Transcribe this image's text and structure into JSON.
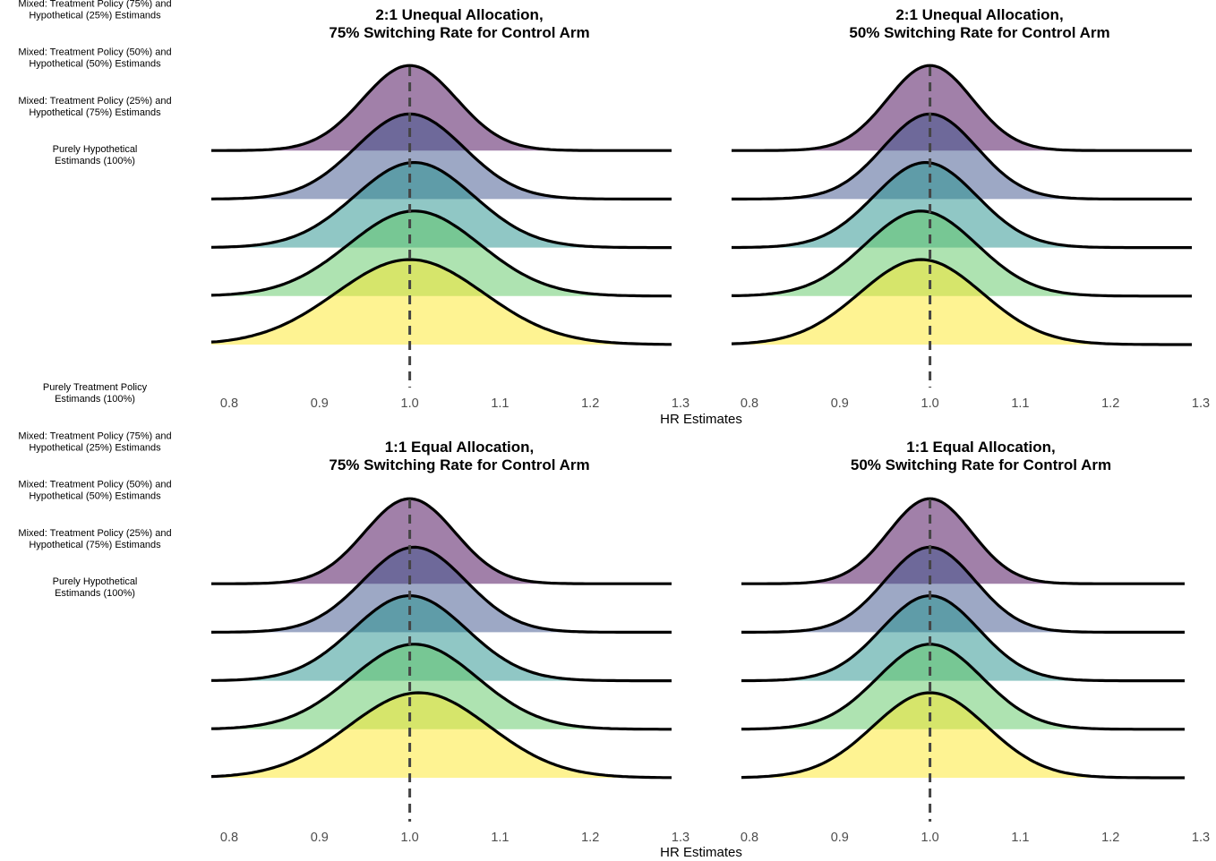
{
  "chart_data": {
    "type": "ridgeline",
    "xlabel": "HR Estimates",
    "xlim": [
      0.78,
      1.29
    ],
    "x_ticks": [
      "0.8",
      "0.9",
      "1.0",
      "1.1",
      "1.2",
      "1.3"
    ],
    "x_tick_values": [
      0.8,
      0.9,
      1.0,
      1.1,
      1.2,
      1.3
    ],
    "reference_line": 1.0,
    "categories": [
      [
        "Purely Treatment Policy",
        "Estimands (100%)"
      ],
      [
        "Mixed: Treatment Policy (75%) and",
        "Hypothetical (25%) Estimands"
      ],
      [
        "Mixed: Treatment Policy (50%) and",
        "Hypothetical (50%) Estimands"
      ],
      [
        "Mixed: Treatment Policy (25%) and",
        "Hypothetical (75%) Estimands"
      ],
      [
        "Purely Hypothetical",
        "Estimands (100%)"
      ]
    ],
    "colors": [
      "#440154",
      "#3b528b",
      "#21908c",
      "#5dc863",
      "#fde725"
    ],
    "panels": [
      {
        "title": [
          "2:1 Unequal Allocation,",
          "75% Switching Rate for Control Arm"
        ],
        "series": [
          {
            "center": 1.0,
            "sd": 0.052
          },
          {
            "center": 1.0,
            "sd": 0.06
          },
          {
            "center": 1.005,
            "sd": 0.066
          },
          {
            "center": 1.005,
            "sd": 0.073
          },
          {
            "center": 1.0,
            "sd": 0.082
          }
        ]
      },
      {
        "title": [
          "2:1 Unequal Allocation,",
          "50% Switching Rate for Control Arm"
        ],
        "series": [
          {
            "center": 1.0,
            "sd": 0.047
          },
          {
            "center": 1.0,
            "sd": 0.052
          },
          {
            "center": 0.995,
            "sd": 0.057
          },
          {
            "center": 0.99,
            "sd": 0.062
          },
          {
            "center": 0.99,
            "sd": 0.068
          }
        ]
      },
      {
        "title": [
          "1:1 Equal Allocation,",
          "75% Switching Rate for Control Arm"
        ],
        "series": [
          {
            "center": 1.0,
            "sd": 0.05
          },
          {
            "center": 1.005,
            "sd": 0.057
          },
          {
            "center": 1.0,
            "sd": 0.063
          },
          {
            "center": 1.005,
            "sd": 0.07
          },
          {
            "center": 1.01,
            "sd": 0.078
          }
        ]
      },
      {
        "title": [
          "1:1 Equal Allocation,",
          "50% Switching Rate for Control Arm"
        ],
        "series": [
          {
            "center": 1.0,
            "sd": 0.046
          },
          {
            "center": 1.0,
            "sd": 0.05
          },
          {
            "center": 1.0,
            "sd": 0.054
          },
          {
            "center": 1.0,
            "sd": 0.058
          },
          {
            "center": 1.0,
            "sd": 0.063
          }
        ]
      }
    ]
  }
}
